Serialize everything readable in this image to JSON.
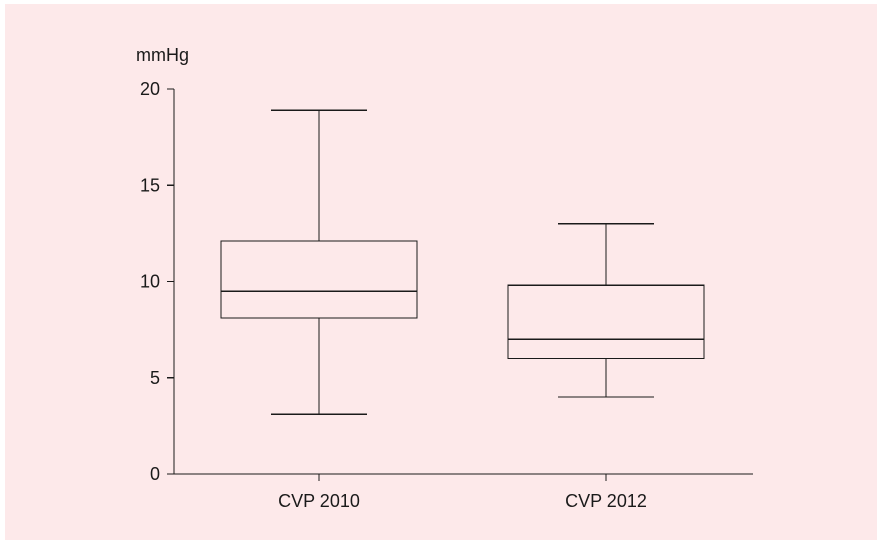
{
  "chart_data": {
    "type": "boxplot",
    "ylabel": "mmHg",
    "ylim": [
      0,
      20
    ],
    "yticks": [
      0,
      5,
      10,
      15,
      20
    ],
    "categories": [
      "CVP 2010",
      "CVP 2012"
    ],
    "boxes": [
      {
        "label": "CVP 2010",
        "min": 3.1,
        "q1": 8.1,
        "median": 9.5,
        "q3": 12.1,
        "max": 18.9
      },
      {
        "label": "CVP 2012",
        "min": 4.0,
        "q1": 6.0,
        "median": 7.0,
        "q3": 9.8,
        "max": 13.0
      }
    ],
    "grid": false,
    "colors": {
      "background": "#fde9ea",
      "stroke": "#1a1a1a"
    }
  }
}
